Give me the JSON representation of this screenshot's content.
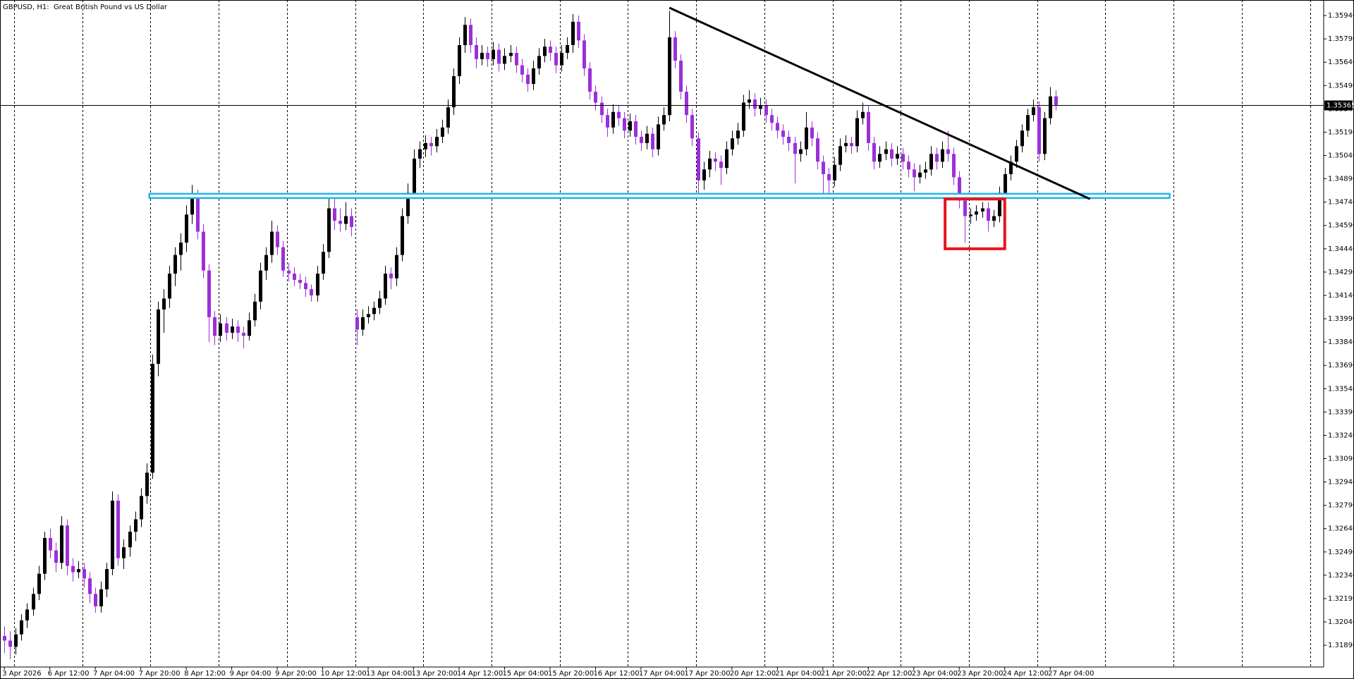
{
  "chart_data": {
    "type": "candlestick",
    "title": "GBPUSD, H1:  Great British Pound vs US Dollar",
    "up_color": "#000000",
    "down_color": "#9b30d9",
    "ylim": [
      1.3175,
      1.3604
    ],
    "yticks": [
      {
        "value": 1.3594,
        "label": "1.35940"
      },
      {
        "value": 1.3579,
        "label": "1.35790"
      },
      {
        "value": 1.3564,
        "label": "1.35640"
      },
      {
        "value": 1.3549,
        "label": "1.35490"
      },
      {
        "value": 1.3534,
        "label": "1.35340"
      },
      {
        "value": 1.3519,
        "label": "1.35190"
      },
      {
        "value": 1.3504,
        "label": "1.35040"
      },
      {
        "value": 1.3489,
        "label": "1.34890"
      },
      {
        "value": 1.3474,
        "label": "1.34740"
      },
      {
        "value": 1.3459,
        "label": "1.34590"
      },
      {
        "value": 1.3444,
        "label": "1.34440"
      },
      {
        "value": 1.3429,
        "label": "1.34290"
      },
      {
        "value": 1.3414,
        "label": "1.34140"
      },
      {
        "value": 1.3399,
        "label": "1.33990"
      },
      {
        "value": 1.3384,
        "label": "1.33840"
      },
      {
        "value": 1.3369,
        "label": "1.33690"
      },
      {
        "value": 1.3354,
        "label": "1.33540"
      },
      {
        "value": 1.3339,
        "label": "1.33390"
      },
      {
        "value": 1.3324,
        "label": "1.33240"
      },
      {
        "value": 1.3309,
        "label": "1.33090"
      },
      {
        "value": 1.3294,
        "label": "1.32940"
      },
      {
        "value": 1.3279,
        "label": "1.32790"
      },
      {
        "value": 1.3264,
        "label": "1.32640"
      },
      {
        "value": 1.3249,
        "label": "1.32490"
      },
      {
        "value": 1.3234,
        "label": "1.32340"
      },
      {
        "value": 1.3219,
        "label": "1.32190"
      },
      {
        "value": 1.3204,
        "label": "1.32040"
      },
      {
        "value": 1.3189,
        "label": "1.31890"
      }
    ],
    "period_separators": true,
    "price_line": 1.35365,
    "support_band": {
      "price": 1.3478,
      "start_index": 25.5,
      "end_index": 205,
      "color": "#22b5e8"
    },
    "trendline": {
      "start_index": 117,
      "start_price": 1.3599,
      "end_index": 191,
      "end_price": 1.3476,
      "color": "#000000"
    },
    "rectangle": {
      "start_index": 165.5,
      "end_index": 176,
      "top": 1.3476,
      "bottom": 1.3444,
      "color": "#e8141b"
    },
    "categories": [
      "3 Apr 2026",
      null,
      null,
      null,
      null,
      null,
      null,
      null,
      "6 Apr 12:00",
      null,
      null,
      null,
      null,
      null,
      null,
      null,
      "7 Apr 04:00",
      null,
      null,
      null,
      null,
      null,
      null,
      null,
      "7 Apr 20:00",
      null,
      null,
      null,
      null,
      null,
      null,
      null,
      "8 Apr 12:00",
      null,
      null,
      null,
      null,
      null,
      null,
      null,
      "9 Apr 04:00",
      null,
      null,
      null,
      null,
      null,
      null,
      null,
      "9 Apr 20:00",
      null,
      null,
      null,
      null,
      null,
      null,
      null,
      "10 Apr 12:00",
      null,
      null,
      null,
      null,
      null,
      null,
      null,
      "13 Apr 04:00",
      null,
      null,
      null,
      null,
      null,
      null,
      null,
      "13 Apr 20:00",
      null,
      null,
      null,
      null,
      null,
      null,
      null,
      "14 Apr 12:00",
      null,
      null,
      null,
      null,
      null,
      null,
      null,
      "15 Apr 04:00",
      null,
      null,
      null,
      null,
      null,
      null,
      null,
      "15 Apr 20:00",
      null,
      null,
      null,
      null,
      null,
      null,
      null,
      "16 Apr 12:00",
      null,
      null,
      null,
      null,
      null,
      null,
      null,
      "17 Apr 04:00",
      null,
      null,
      null,
      null,
      null,
      null,
      null,
      "17 Apr 20:00",
      null,
      null,
      null,
      null,
      null,
      null,
      null,
      "20 Apr 12:00",
      null,
      null,
      null,
      null,
      null,
      null,
      null,
      "21 Apr 04:00",
      null,
      null,
      null,
      null,
      null,
      null,
      null,
      "21 Apr 20:00",
      null,
      null,
      null,
      null,
      null,
      null,
      null,
      "22 Apr 12:00",
      null,
      null,
      null,
      null,
      null,
      null,
      null,
      "23 Apr 04:00",
      null,
      null,
      null,
      null,
      null,
      null,
      null,
      "23 Apr 20:00",
      null,
      null,
      null,
      null,
      null,
      null,
      null,
      "24 Apr 12:00",
      null,
      null,
      null,
      null,
      null,
      null,
      null,
      "27 Apr 04:00",
      null
    ],
    "ohlc": [
      [
        1.3195,
        1.3201,
        1.3184,
        1.3192
      ],
      [
        1.3192,
        1.3198,
        1.318,
        1.3188
      ],
      [
        1.3188,
        1.32,
        1.3183,
        1.3196
      ],
      [
        1.3196,
        1.3209,
        1.3192,
        1.3205
      ],
      [
        1.3205,
        1.3216,
        1.32,
        1.3212
      ],
      [
        1.3212,
        1.3226,
        1.3208,
        1.3222
      ],
      [
        1.3222,
        1.324,
        1.3218,
        1.3235
      ],
      [
        1.3235,
        1.3262,
        1.3231,
        1.3258
      ],
      [
        1.3258,
        1.3264,
        1.3245,
        1.325
      ],
      [
        1.325,
        1.3255,
        1.3236,
        1.3242
      ],
      [
        1.3242,
        1.3272,
        1.3238,
        1.3266
      ],
      [
        1.3266,
        1.327,
        1.3234,
        1.324
      ],
      [
        1.324,
        1.3245,
        1.323,
        1.3236
      ],
      [
        1.3236,
        1.3243,
        1.3232,
        1.3238
      ],
      [
        1.3238,
        1.3242,
        1.3226,
        1.3232
      ],
      [
        1.3232,
        1.3236,
        1.3216,
        1.3222
      ],
      [
        1.3222,
        1.3226,
        1.321,
        1.3214
      ],
      [
        1.3214,
        1.323,
        1.321,
        1.3225
      ],
      [
        1.3225,
        1.3242,
        1.322,
        1.3238
      ],
      [
        1.3238,
        1.3288,
        1.3234,
        1.3282
      ],
      [
        1.3282,
        1.3286,
        1.324,
        1.3245
      ],
      [
        1.3245,
        1.3257,
        1.3238,
        1.3252
      ],
      [
        1.3252,
        1.3266,
        1.3246,
        1.3262
      ],
      [
        1.3262,
        1.3275,
        1.3256,
        1.327
      ],
      [
        1.327,
        1.329,
        1.3265,
        1.3285
      ],
      [
        1.3285,
        1.3306,
        1.328,
        1.33
      ],
      [
        1.33,
        1.3376,
        1.3296,
        1.337
      ],
      [
        1.337,
        1.341,
        1.3362,
        1.3405
      ],
      [
        1.3405,
        1.3418,
        1.339,
        1.3412
      ],
      [
        1.3412,
        1.3433,
        1.3406,
        1.3428
      ],
      [
        1.3428,
        1.3445,
        1.342,
        1.344
      ],
      [
        1.344,
        1.3454,
        1.343,
        1.3448
      ],
      [
        1.3448,
        1.3472,
        1.3442,
        1.3466
      ],
      [
        1.3466,
        1.3485,
        1.346,
        1.3478
      ],
      [
        1.3478,
        1.3482,
        1.345,
        1.3455
      ],
      [
        1.3455,
        1.346,
        1.3425,
        1.343
      ],
      [
        1.343,
        1.3434,
        1.3384,
        1.34
      ],
      [
        1.34,
        1.3404,
        1.3382,
        1.3388
      ],
      [
        1.3388,
        1.3402,
        1.3384,
        1.3396
      ],
      [
        1.3396,
        1.34,
        1.3385,
        1.339
      ],
      [
        1.339,
        1.3399,
        1.3386,
        1.3394
      ],
      [
        1.3394,
        1.3398,
        1.3384,
        1.339
      ],
      [
        1.339,
        1.3394,
        1.338,
        1.3388
      ],
      [
        1.3388,
        1.3403,
        1.3385,
        1.3398
      ],
      [
        1.3398,
        1.3415,
        1.3394,
        1.341
      ],
      [
        1.341,
        1.3435,
        1.3405,
        1.343
      ],
      [
        1.343,
        1.3445,
        1.3424,
        1.344
      ],
      [
        1.344,
        1.3462,
        1.3435,
        1.3455
      ],
      [
        1.3455,
        1.3459,
        1.344,
        1.3445
      ],
      [
        1.3445,
        1.3449,
        1.3426,
        1.343
      ],
      [
        1.343,
        1.3435,
        1.3423,
        1.3428
      ],
      [
        1.3428,
        1.3432,
        1.342,
        1.3424
      ],
      [
        1.3424,
        1.3428,
        1.3418,
        1.3422
      ],
      [
        1.3422,
        1.3426,
        1.3413,
        1.3418
      ],
      [
        1.3418,
        1.3421,
        1.341,
        1.3414
      ],
      [
        1.3414,
        1.3433,
        1.341,
        1.3428
      ],
      [
        1.3428,
        1.3447,
        1.3424,
        1.3442
      ],
      [
        1.3442,
        1.348,
        1.3438,
        1.347
      ],
      [
        1.347,
        1.3478,
        1.3456,
        1.3462
      ],
      [
        1.3462,
        1.347,
        1.3455,
        1.346
      ],
      [
        1.346,
        1.3474,
        1.3456,
        1.3465
      ],
      [
        1.3465,
        1.347,
        1.3452,
        1.3458
      ],
      [
        1.34,
        1.3405,
        1.3382,
        1.3392
      ],
      [
        1.3392,
        1.3405,
        1.3388,
        1.34
      ],
      [
        1.34,
        1.3407,
        1.3396,
        1.3402
      ],
      [
        1.3402,
        1.341,
        1.3398,
        1.3406
      ],
      [
        1.3406,
        1.3417,
        1.3402,
        1.3412
      ],
      [
        1.3412,
        1.3433,
        1.3408,
        1.3428
      ],
      [
        1.3428,
        1.3432,
        1.3418,
        1.3425
      ],
      [
        1.3425,
        1.3445,
        1.342,
        1.344
      ],
      [
        1.344,
        1.347,
        1.3436,
        1.3465
      ],
      [
        1.3465,
        1.3486,
        1.346,
        1.348
      ],
      [
        1.348,
        1.3508,
        1.3476,
        1.3502
      ],
      [
        1.3502,
        1.3513,
        1.3496,
        1.3508
      ],
      [
        1.3508,
        1.3517,
        1.3503,
        1.3512
      ],
      [
        1.3512,
        1.3516,
        1.3504,
        1.351
      ],
      [
        1.351,
        1.3521,
        1.3506,
        1.3516
      ],
      [
        1.3516,
        1.3527,
        1.3512,
        1.3522
      ],
      [
        1.3522,
        1.354,
        1.3518,
        1.3535
      ],
      [
        1.3535,
        1.356,
        1.353,
        1.3555
      ],
      [
        1.3555,
        1.358,
        1.355,
        1.3575
      ],
      [
        1.3575,
        1.3593,
        1.357,
        1.3588
      ],
      [
        1.3588,
        1.3592,
        1.357,
        1.3575
      ],
      [
        1.3575,
        1.358,
        1.356,
        1.3566
      ],
      [
        1.3566,
        1.3575,
        1.3562,
        1.357
      ],
      [
        1.357,
        1.3574,
        1.3561,
        1.3566
      ],
      [
        1.3566,
        1.3577,
        1.3562,
        1.3572
      ],
      [
        1.3572,
        1.3576,
        1.3558,
        1.3563
      ],
      [
        1.3563,
        1.3573,
        1.3559,
        1.3568
      ],
      [
        1.3568,
        1.3575,
        1.3564,
        1.357
      ],
      [
        1.357,
        1.3574,
        1.3557,
        1.3562
      ],
      [
        1.3562,
        1.3566,
        1.3551,
        1.3556
      ],
      [
        1.3556,
        1.356,
        1.3545,
        1.355
      ],
      [
        1.355,
        1.3565,
        1.3546,
        1.356
      ],
      [
        1.356,
        1.3573,
        1.3556,
        1.3568
      ],
      [
        1.3568,
        1.3579,
        1.3564,
        1.3574
      ],
      [
        1.3574,
        1.3578,
        1.3565,
        1.357
      ],
      [
        1.357,
        1.3574,
        1.3557,
        1.3562
      ],
      [
        1.3562,
        1.3575,
        1.3558,
        1.357
      ],
      [
        1.357,
        1.358,
        1.3566,
        1.3575
      ],
      [
        1.3575,
        1.3595,
        1.357,
        1.359
      ],
      [
        1.359,
        1.3594,
        1.3573,
        1.3578
      ],
      [
        1.3578,
        1.3582,
        1.3555,
        1.356
      ],
      [
        1.356,
        1.3564,
        1.354,
        1.3545
      ],
      [
        1.3545,
        1.3549,
        1.3533,
        1.3538
      ],
      [
        1.3538,
        1.3542,
        1.3525,
        1.353
      ],
      [
        1.353,
        1.3534,
        1.3516,
        1.3522
      ],
      [
        1.3522,
        1.3537,
        1.3518,
        1.3532
      ],
      [
        1.3532,
        1.3536,
        1.3523,
        1.3528
      ],
      [
        1.3528,
        1.3532,
        1.3515,
        1.352
      ],
      [
        1.352,
        1.3531,
        1.3516,
        1.3526
      ],
      [
        1.3526,
        1.353,
        1.3511,
        1.3516
      ],
      [
        1.3516,
        1.352,
        1.3507,
        1.3512
      ],
      [
        1.3512,
        1.3523,
        1.3508,
        1.3518
      ],
      [
        1.3518,
        1.3522,
        1.3503,
        1.3508
      ],
      [
        1.3508,
        1.3529,
        1.3504,
        1.3524
      ],
      [
        1.3524,
        1.3535,
        1.352,
        1.353
      ],
      [
        1.353,
        1.3597,
        1.3526,
        1.358
      ],
      [
        1.358,
        1.3584,
        1.356,
        1.3565
      ],
      [
        1.3565,
        1.3569,
        1.354,
        1.3545
      ],
      [
        1.3545,
        1.3549,
        1.3525,
        1.353
      ],
      [
        1.353,
        1.3534,
        1.351,
        1.3515
      ],
      [
        1.3515,
        1.3519,
        1.3478,
        1.3488
      ],
      [
        1.3488,
        1.35,
        1.3482,
        1.3495
      ],
      [
        1.3495,
        1.3507,
        1.349,
        1.3502
      ],
      [
        1.3502,
        1.3506,
        1.3494,
        1.35
      ],
      [
        1.35,
        1.3504,
        1.3485,
        1.3496
      ],
      [
        1.3496,
        1.3513,
        1.3492,
        1.3508
      ],
      [
        1.3508,
        1.352,
        1.3504,
        1.3515
      ],
      [
        1.3515,
        1.3525,
        1.3511,
        1.352
      ],
      [
        1.352,
        1.3543,
        1.3516,
        1.3538
      ],
      [
        1.3538,
        1.3546,
        1.3534,
        1.354
      ],
      [
        1.354,
        1.3544,
        1.3529,
        1.3534
      ],
      [
        1.3534,
        1.3541,
        1.353,
        1.3536
      ],
      [
        1.3536,
        1.354,
        1.3525,
        1.353
      ],
      [
        1.353,
        1.3534,
        1.352,
        1.3525
      ],
      [
        1.3525,
        1.3529,
        1.3515,
        1.352
      ],
      [
        1.352,
        1.3524,
        1.3511,
        1.3516
      ],
      [
        1.3516,
        1.352,
        1.3507,
        1.3512
      ],
      [
        1.3512,
        1.3516,
        1.3486,
        1.3505
      ],
      [
        1.3505,
        1.3513,
        1.35,
        1.3508
      ],
      [
        1.3508,
        1.3532,
        1.3504,
        1.3522
      ],
      [
        1.3522,
        1.3526,
        1.351,
        1.3515
      ],
      [
        1.3515,
        1.3519,
        1.3495,
        1.35
      ],
      [
        1.35,
        1.3504,
        1.3477,
        1.3492
      ],
      [
        1.3492,
        1.3496,
        1.3476,
        1.3488
      ],
      [
        1.3488,
        1.3503,
        1.3484,
        1.3498
      ],
      [
        1.3498,
        1.3515,
        1.3494,
        1.351
      ],
      [
        1.351,
        1.3517,
        1.3506,
        1.3512
      ],
      [
        1.3512,
        1.3516,
        1.3505,
        1.351
      ],
      [
        1.351,
        1.3533,
        1.3506,
        1.3528
      ],
      [
        1.3528,
        1.3538,
        1.3524,
        1.3532
      ],
      [
        1.3532,
        1.3536,
        1.3507,
        1.3512
      ],
      [
        1.3512,
        1.3516,
        1.3495,
        1.35
      ],
      [
        1.35,
        1.351,
        1.3496,
        1.3505
      ],
      [
        1.3505,
        1.3513,
        1.3501,
        1.3508
      ],
      [
        1.3508,
        1.3512,
        1.3497,
        1.3502
      ],
      [
        1.3502,
        1.351,
        1.3498,
        1.3505
      ],
      [
        1.3505,
        1.3509,
        1.3495,
        1.35
      ],
      [
        1.35,
        1.3504,
        1.349,
        1.3495
      ],
      [
        1.3495,
        1.3499,
        1.3481,
        1.349
      ],
      [
        1.349,
        1.3498,
        1.3486,
        1.3493
      ],
      [
        1.3493,
        1.35,
        1.3489,
        1.3495
      ],
      [
        1.3495,
        1.351,
        1.3491,
        1.3505
      ],
      [
        1.3505,
        1.3509,
        1.3495,
        1.35
      ],
      [
        1.35,
        1.3513,
        1.3496,
        1.3508
      ],
      [
        1.3508,
        1.352,
        1.35,
        1.3505
      ],
      [
        1.3505,
        1.3509,
        1.3485,
        1.349
      ],
      [
        1.349,
        1.3494,
        1.347,
        1.3475
      ],
      [
        1.3475,
        1.3479,
        1.3448,
        1.3465
      ],
      [
        1.3465,
        1.347,
        1.346,
        1.3466
      ],
      [
        1.3466,
        1.3472,
        1.3462,
        1.3468
      ],
      [
        1.3468,
        1.3474,
        1.3464,
        1.347
      ],
      [
        1.347,
        1.3474,
        1.3455,
        1.3462
      ],
      [
        1.3462,
        1.3469,
        1.3458,
        1.3465
      ],
      [
        1.3465,
        1.3484,
        1.3461,
        1.348
      ],
      [
        1.348,
        1.3496,
        1.3476,
        1.3492
      ],
      [
        1.3492,
        1.3504,
        1.3488,
        1.35
      ],
      [
        1.35,
        1.3514,
        1.3496,
        1.351
      ],
      [
        1.351,
        1.3524,
        1.3506,
        1.352
      ],
      [
        1.352,
        1.3534,
        1.3516,
        1.353
      ],
      [
        1.353,
        1.354,
        1.3526,
        1.3535
      ],
      [
        1.3535,
        1.3539,
        1.35,
        1.3505
      ],
      [
        1.3505,
        1.3532,
        1.3501,
        1.3528
      ],
      [
        1.3528,
        1.3548,
        1.3524,
        1.3542
      ],
      [
        1.3542,
        1.3546,
        1.3533,
        1.35365
      ]
    ]
  }
}
